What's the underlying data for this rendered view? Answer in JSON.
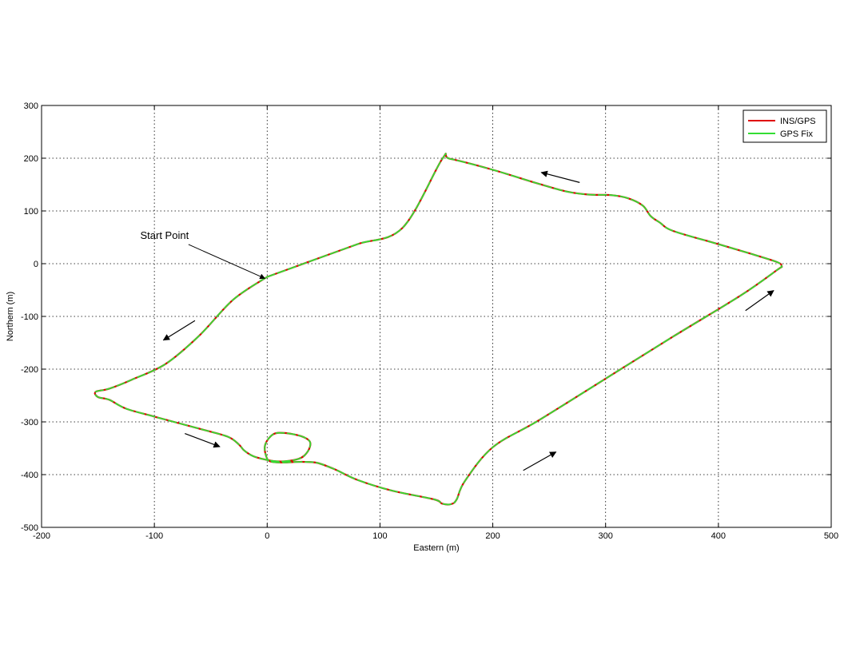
{
  "chart_data": {
    "type": "line",
    "xlabel": "Eastern (m)",
    "ylabel": "Northern (m)",
    "xlim": [
      -200,
      500
    ],
    "ylim": [
      -500,
      300
    ],
    "xticks": [
      "-200",
      "-100",
      "0",
      "100",
      "200",
      "300",
      "400",
      "500"
    ],
    "yticks": [
      "-500",
      "-400",
      "-300",
      "-200",
      "-100",
      "0",
      "100",
      "200",
      "300"
    ],
    "grid": true,
    "legend_position": "top-right",
    "series": [
      {
        "name": "INS/GPS",
        "color": "#e00000",
        "x": [
          0,
          40,
          80,
          120,
          155,
          162,
          200,
          240,
          265,
          285,
          305,
          320,
          333,
          340,
          348,
          360,
          400,
          430,
          452,
          456,
          452,
          420,
          360,
          300,
          240,
          200,
          175,
          168,
          163,
          155,
          148,
          110,
          80,
          60,
          45,
          35,
          25,
          15,
          5,
          0,
          -2,
          5,
          15,
          30,
          38,
          36,
          28,
          10,
          -10,
          -20,
          -25,
          -35,
          -60,
          -100,
          -125,
          -140,
          -150,
          -152,
          -140,
          -120,
          -90,
          -60,
          -30,
          0
        ],
        "y": [
          -25,
          6,
          37,
          68,
          198,
          199,
          178,
          152,
          137,
          131,
          130,
          124,
          110,
          90,
          78,
          62,
          37,
          18,
          3,
          -5,
          -12,
          -60,
          -138,
          -218,
          -298,
          -348,
          -413,
          -447,
          -456,
          -455,
          -447,
          -430,
          -410,
          -390,
          -378,
          -376,
          -376,
          -377,
          -376,
          -370,
          -345,
          -324,
          -321,
          -327,
          -338,
          -356,
          -370,
          -375,
          -367,
          -355,
          -343,
          -328,
          -313,
          -290,
          -275,
          -258,
          -253,
          -243,
          -237,
          -220,
          -190,
          -136,
          -68,
          -25
        ]
      },
      {
        "name": "GPS Fix",
        "color": "#33dd33",
        "x": [
          0,
          40,
          80,
          120,
          155,
          162,
          200,
          240,
          265,
          285,
          305,
          320,
          333,
          340,
          348,
          360,
          400,
          430,
          452,
          456,
          452,
          420,
          360,
          300,
          240,
          200,
          175,
          168,
          163,
          155,
          148,
          110,
          80,
          60,
          45,
          35,
          25,
          15,
          5,
          0,
          -2,
          5,
          15,
          30,
          38,
          36,
          28,
          10,
          -10,
          -20,
          -25,
          -35,
          -60,
          -100,
          -125,
          -140,
          -150,
          -152,
          -140,
          -120,
          -90,
          -60,
          -30,
          0
        ],
        "y": [
          -25,
          6,
          37,
          68,
          198,
          199,
          178,
          152,
          137,
          131,
          130,
          124,
          110,
          90,
          78,
          62,
          37,
          18,
          3,
          -5,
          -12,
          -60,
          -138,
          -218,
          -298,
          -348,
          -413,
          -447,
          -456,
          -455,
          -447,
          -430,
          -410,
          -390,
          -378,
          -376,
          -376,
          -377,
          -376,
          -370,
          -345,
          -324,
          -321,
          -327,
          -338,
          -356,
          -370,
          -375,
          -367,
          -355,
          -343,
          -328,
          -313,
          -290,
          -275,
          -258,
          -253,
          -243,
          -237,
          -220,
          -190,
          -136,
          -68,
          -25
        ]
      }
    ],
    "annotations": [
      {
        "text": "Start Point",
        "x": -91,
        "y": 47,
        "arrow_to": [
          -2,
          -28
        ]
      }
    ],
    "direction_arrows": [
      {
        "from": [
          277,
          154
        ],
        "to": [
          243,
          173
        ]
      },
      {
        "from": [
          -64,
          -108
        ],
        "to": [
          -92,
          -145
        ]
      },
      {
        "from": [
          -73,
          -322
        ],
        "to": [
          -42,
          -347
        ]
      },
      {
        "from": [
          227,
          -392
        ],
        "to": [
          256,
          -357
        ]
      },
      {
        "from": [
          424,
          -89
        ],
        "to": [
          449,
          -51
        ]
      }
    ]
  }
}
